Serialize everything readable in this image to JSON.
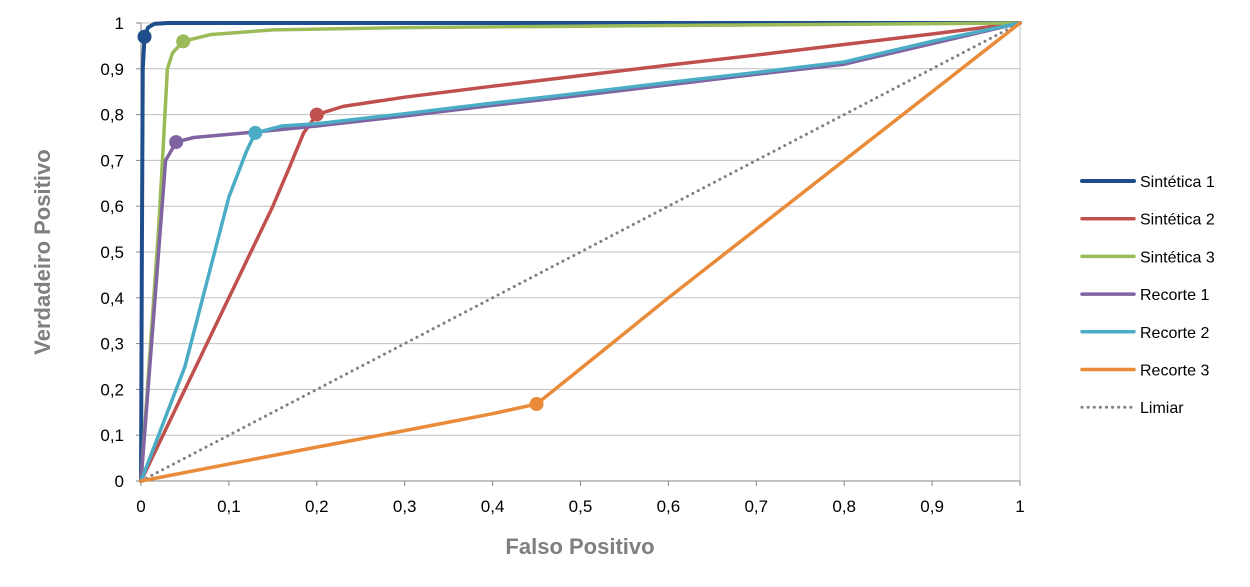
{
  "chart_data": {
    "type": "line",
    "title": "",
    "xlabel": "Falso Positivo",
    "ylabel": "Verdadeiro Positivo",
    "xlim": [
      0,
      1
    ],
    "ylim": [
      0,
      1
    ],
    "x_ticks": [
      "0",
      "0,1",
      "0,2",
      "0,3",
      "0,4",
      "0,5",
      "0,6",
      "0,7",
      "0,8",
      "0,9",
      "1"
    ],
    "y_ticks": [
      "0",
      "0,1",
      "0,2",
      "0,3",
      "0,4",
      "0,5",
      "0,6",
      "0,7",
      "0,8",
      "0,9",
      "1"
    ],
    "grid": "horizontal",
    "legend_position": "right",
    "series": [
      {
        "name": "Sintética 1",
        "color": "#1f4e8c",
        "style": "solid-thick",
        "points": [
          [
            0,
            0
          ],
          [
            0.001,
            0.5
          ],
          [
            0.002,
            0.9
          ],
          [
            0.004,
            0.97
          ],
          [
            0.008,
            0.99
          ],
          [
            0.015,
            0.998
          ],
          [
            0.03,
            1
          ],
          [
            1,
            1
          ]
        ],
        "marker": [
          0.004,
          0.97
        ]
      },
      {
        "name": "Sintética 2",
        "color": "#c0504d",
        "style": "solid",
        "points": [
          [
            0,
            0
          ],
          [
            0.05,
            0.2
          ],
          [
            0.1,
            0.4
          ],
          [
            0.15,
            0.6
          ],
          [
            0.17,
            0.69
          ],
          [
            0.185,
            0.76
          ],
          [
            0.2,
            0.8
          ],
          [
            0.23,
            0.818
          ],
          [
            0.3,
            0.838
          ],
          [
            0.4,
            0.862
          ],
          [
            0.5,
            0.885
          ],
          [
            0.6,
            0.908
          ],
          [
            0.7,
            0.93
          ],
          [
            0.8,
            0.953
          ],
          [
            0.9,
            0.976
          ],
          [
            1,
            1
          ]
        ],
        "marker": [
          0.2,
          0.8
        ]
      },
      {
        "name": "Sintética 3",
        "color": "#9bbb59",
        "style": "solid",
        "points": [
          [
            0,
            0
          ],
          [
            0.02,
            0.55
          ],
          [
            0.025,
            0.72
          ],
          [
            0.03,
            0.9
          ],
          [
            0.036,
            0.935
          ],
          [
            0.048,
            0.96
          ],
          [
            0.08,
            0.975
          ],
          [
            0.15,
            0.985
          ],
          [
            0.3,
            0.99
          ],
          [
            0.5,
            0.993
          ],
          [
            1,
            1
          ]
        ],
        "marker": [
          0.048,
          0.96
        ]
      },
      {
        "name": "Recorte 1",
        "color": "#8064a2",
        "style": "solid",
        "points": [
          [
            0,
            0
          ],
          [
            0.01,
            0.25
          ],
          [
            0.02,
            0.5
          ],
          [
            0.028,
            0.7
          ],
          [
            0.04,
            0.74
          ],
          [
            0.06,
            0.75
          ],
          [
            0.13,
            0.762
          ],
          [
            0.2,
            0.775
          ],
          [
            0.3,
            0.797
          ],
          [
            0.4,
            0.82
          ],
          [
            0.5,
            0.842
          ],
          [
            0.6,
            0.865
          ],
          [
            0.7,
            0.888
          ],
          [
            0.8,
            0.91
          ],
          [
            0.9,
            0.955
          ],
          [
            1,
            1
          ]
        ],
        "marker": [
          0.04,
          0.74
        ]
      },
      {
        "name": "Recorte 2",
        "color": "#4bacc6",
        "style": "solid",
        "points": [
          [
            0,
            0
          ],
          [
            0.05,
            0.25
          ],
          [
            0.1,
            0.62
          ],
          [
            0.11,
            0.67
          ],
          [
            0.12,
            0.72
          ],
          [
            0.13,
            0.76
          ],
          [
            0.16,
            0.775
          ],
          [
            0.2,
            0.78
          ],
          [
            0.3,
            0.802
          ],
          [
            0.4,
            0.825
          ],
          [
            0.5,
            0.847
          ],
          [
            0.6,
            0.87
          ],
          [
            0.7,
            0.892
          ],
          [
            0.8,
            0.915
          ],
          [
            0.9,
            0.96
          ],
          [
            1,
            1
          ]
        ],
        "marker": [
          0.13,
          0.76
        ]
      },
      {
        "name": "Recorte 3",
        "color": "#e98b39",
        "style": "solid",
        "points": [
          [
            0,
            0
          ],
          [
            0.1,
            0.037
          ],
          [
            0.2,
            0.074
          ],
          [
            0.3,
            0.11
          ],
          [
            0.4,
            0.147
          ],
          [
            0.45,
            0.168
          ],
          [
            0.5,
            0.245
          ],
          [
            0.6,
            0.4
          ],
          [
            0.7,
            0.55
          ],
          [
            0.8,
            0.7
          ],
          [
            0.9,
            0.85
          ],
          [
            1,
            1
          ]
        ],
        "marker": [
          0.45,
          0.168
        ]
      },
      {
        "name": "Limiar",
        "color": "#808080",
        "style": "dotted",
        "points": [
          [
            0,
            0
          ],
          [
            1,
            1
          ]
        ],
        "marker": null
      }
    ]
  }
}
